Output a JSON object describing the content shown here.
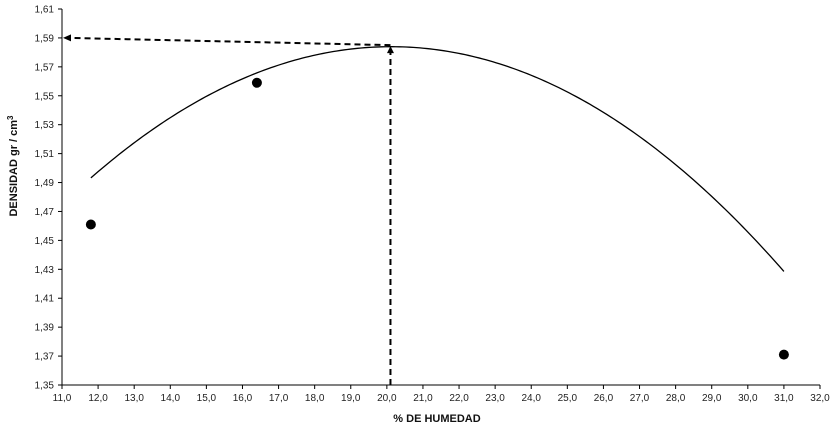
{
  "chart_data": {
    "type": "scatter",
    "title": "",
    "xlabel": "% DE HUMEDAD",
    "ylabel_main": "DENSIDAD  gr / cm",
    "ylabel_sup": "3",
    "xlim": [
      11.0,
      32.0
    ],
    "ylim": [
      1.35,
      1.61
    ],
    "x_ticks": [
      "11,0",
      "12,0",
      "13,0",
      "14,0",
      "15,0",
      "16,0",
      "17,0",
      "18,0",
      "19,0",
      "20,0",
      "21,0",
      "22,0",
      "23,0",
      "24,0",
      "25,0",
      "26,0",
      "27,0",
      "28,0",
      "29,0",
      "30,0",
      "31,0",
      "32,0"
    ],
    "y_ticks": [
      "1,35",
      "1,37",
      "1,39",
      "1,41",
      "1,43",
      "1,45",
      "1,47",
      "1,49",
      "1,51",
      "1,53",
      "1,55",
      "1,57",
      "1,59",
      "1,61"
    ],
    "grid": false,
    "legend": "none",
    "series": [
      {
        "points": [
          {
            "x": 11.8,
            "y": 1.461
          },
          {
            "x": 16.4,
            "y": 1.559
          },
          {
            "x": 31.0,
            "y": 1.371
          }
        ]
      }
    ],
    "fit_curve": {
      "type": "quadratic",
      "coeffs": {
        "a": -0.001312,
        "b": 0.052786,
        "c": 1.053
      }
    },
    "optimum": {
      "x": 20.1,
      "y": 1.585
    },
    "marker_color": "#000000",
    "curve_color": "#000000"
  }
}
